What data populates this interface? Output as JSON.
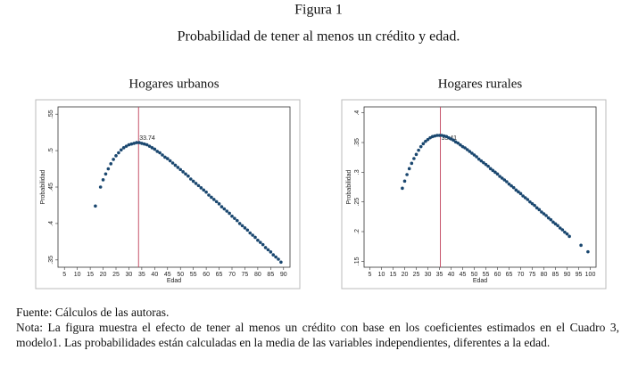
{
  "figure": {
    "label": "Figura 1",
    "title": "Probabilidad de tener al menos un crédito y edad."
  },
  "chart_data": [
    {
      "type": "scatter",
      "title": "Hogares urbanos",
      "xlabel": "Edad",
      "ylabel": "Probabilidad",
      "color": "#1a476f",
      "vline": 33.74,
      "vline_color": "#c0405a",
      "x": [
        17,
        19,
        20,
        21,
        22,
        23,
        24,
        25,
        26,
        27,
        28,
        29,
        30,
        31,
        32,
        33,
        34,
        35,
        36,
        37,
        38,
        39,
        40,
        41,
        42,
        43,
        44,
        45,
        46,
        47,
        48,
        49,
        50,
        51,
        52,
        53,
        54,
        55,
        56,
        57,
        58,
        59,
        60,
        61,
        62,
        63,
        64,
        65,
        66,
        67,
        68,
        69,
        70,
        71,
        72,
        73,
        74,
        75,
        76,
        77,
        78,
        79,
        80,
        81,
        82,
        83,
        84,
        85,
        86,
        87,
        88,
        89
      ],
      "values": [
        0.424,
        0.45,
        0.46,
        0.468,
        0.475,
        0.482,
        0.488,
        0.493,
        0.497,
        0.501,
        0.504,
        0.506,
        0.508,
        0.509,
        0.51,
        0.511,
        0.511,
        0.51,
        0.509,
        0.508,
        0.506,
        0.504,
        0.502,
        0.499,
        0.497,
        0.494,
        0.491,
        0.489,
        0.486,
        0.483,
        0.48,
        0.477,
        0.474,
        0.471,
        0.468,
        0.465,
        0.461,
        0.458,
        0.455,
        0.452,
        0.449,
        0.446,
        0.443,
        0.439,
        0.436,
        0.433,
        0.43,
        0.427,
        0.423,
        0.42,
        0.417,
        0.414,
        0.41,
        0.407,
        0.404,
        0.4,
        0.397,
        0.394,
        0.391,
        0.387,
        0.384,
        0.381,
        0.377,
        0.374,
        0.371,
        0.367,
        0.364,
        0.361,
        0.357,
        0.354,
        0.351,
        0.347
      ],
      "xlim": [
        2.5,
        92.5
      ],
      "xticks": [
        5,
        10,
        15,
        20,
        25,
        30,
        35,
        40,
        45,
        50,
        55,
        60,
        65,
        70,
        75,
        80,
        85,
        90
      ],
      "ylim": [
        0.34,
        0.56
      ],
      "yticks": [
        {
          "value": 0.35,
          "label": ".35"
        },
        {
          "value": 0.4,
          "label": ".4"
        },
        {
          "value": 0.45,
          "label": ".45"
        },
        {
          "value": 0.5,
          "label": ".5"
        },
        {
          "value": 0.55,
          "label": ".55"
        }
      ]
    },
    {
      "type": "scatter",
      "title": "Hogares rurales",
      "xlabel": "Edad",
      "ylabel": "Probabilidad",
      "color": "#1a476f",
      "vline": 35.41,
      "vline_color": "#c0405a",
      "x": [
        19,
        20,
        21,
        22,
        23,
        24,
        25,
        26,
        27,
        28,
        29,
        30,
        31,
        32,
        33,
        34,
        35,
        36,
        37,
        38,
        39,
        40,
        41,
        42,
        43,
        44,
        45,
        46,
        47,
        48,
        49,
        50,
        51,
        52,
        53,
        54,
        55,
        56,
        57,
        58,
        59,
        60,
        61,
        62,
        63,
        64,
        65,
        66,
        67,
        68,
        69,
        70,
        71,
        72,
        73,
        74,
        75,
        76,
        77,
        78,
        79,
        80,
        81,
        82,
        83,
        84,
        85,
        86,
        87,
        88,
        89,
        90,
        91,
        96,
        99
      ],
      "values": [
        0.273,
        0.285,
        0.296,
        0.306,
        0.315,
        0.323,
        0.33,
        0.337,
        0.343,
        0.348,
        0.352,
        0.355,
        0.358,
        0.36,
        0.361,
        0.362,
        0.362,
        0.362,
        0.361,
        0.36,
        0.358,
        0.356,
        0.354,
        0.351,
        0.349,
        0.346,
        0.343,
        0.341,
        0.338,
        0.335,
        0.332,
        0.329,
        0.326,
        0.322,
        0.319,
        0.316,
        0.313,
        0.31,
        0.306,
        0.303,
        0.3,
        0.297,
        0.293,
        0.29,
        0.287,
        0.284,
        0.28,
        0.277,
        0.274,
        0.27,
        0.267,
        0.264,
        0.26,
        0.257,
        0.254,
        0.25,
        0.247,
        0.244,
        0.24,
        0.237,
        0.233,
        0.23,
        0.227,
        0.223,
        0.22,
        0.216,
        0.213,
        0.21,
        0.206,
        0.203,
        0.199,
        0.196,
        0.192,
        0.177,
        0.166
      ],
      "xlim": [
        2.5,
        102.5
      ],
      "xticks": [
        5,
        10,
        15,
        20,
        25,
        30,
        35,
        40,
        45,
        50,
        55,
        60,
        65,
        70,
        75,
        80,
        85,
        90,
        95,
        100
      ],
      "ylim": [
        0.14,
        0.41
      ],
      "yticks": [
        {
          "value": 0.15,
          "label": ".15"
        },
        {
          "value": 0.2,
          "label": ".2"
        },
        {
          "value": 0.25,
          "label": ".25"
        },
        {
          "value": 0.3,
          "label": ".3"
        },
        {
          "value": 0.35,
          "label": ".35"
        },
        {
          "value": 0.4,
          "label": ".4"
        }
      ]
    }
  ],
  "notes": {
    "source": "Fuente: Cálculos de las autoras.",
    "note": "Nota: La figura muestra el efecto de tener al menos un crédito con base en los coeficientes estimados en el Cuadro 3, modelo1. Las probabilidades están calculadas en la media de las variables independientes, diferentes a la edad."
  }
}
